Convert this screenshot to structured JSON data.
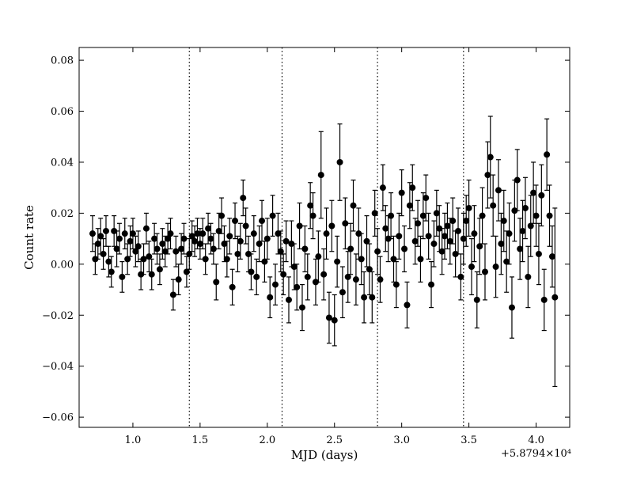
{
  "chart_data": {
    "type": "scatter",
    "title": "",
    "xlabel": "MJD (days)",
    "ylabel": "Count rate",
    "xlim": [
      0.6,
      4.25
    ],
    "ylim": [
      -0.064,
      0.085
    ],
    "x_offset_label": "+5.8794×10⁴",
    "x_ticks": [
      1.0,
      1.5,
      2.0,
      2.5,
      3.0,
      3.5,
      4.0
    ],
    "x_tick_labels": [
      "1.0",
      "1.5",
      "2.0",
      "2.5",
      "3.0",
      "3.5",
      "4.0"
    ],
    "y_ticks": [
      -0.06,
      -0.04,
      -0.02,
      0.0,
      0.02,
      0.04,
      0.06,
      0.08
    ],
    "y_tick_labels": [
      "−0.06",
      "−0.04",
      "−0.02",
      "0.00",
      "0.02",
      "0.04",
      "0.06",
      "0.08"
    ],
    "vertical_lines": [
      1.42,
      2.11,
      2.82,
      3.46
    ],
    "grid": false,
    "marker_color": "#000000",
    "series": [
      {
        "points": [
          [
            0.7,
            0.012,
            0.007
          ],
          [
            0.72,
            0.002,
            0.006
          ],
          [
            0.74,
            0.008,
            0.006
          ],
          [
            0.76,
            0.011,
            0.007
          ],
          [
            0.78,
            0.004,
            0.006
          ],
          [
            0.8,
            0.013,
            0.006
          ],
          [
            0.82,
            0.001,
            0.006
          ],
          [
            0.84,
            -0.003,
            0.006
          ],
          [
            0.86,
            0.013,
            0.006
          ],
          [
            0.88,
            0.006,
            0.007
          ],
          [
            0.9,
            0.01,
            0.006
          ],
          [
            0.92,
            -0.005,
            0.006
          ],
          [
            0.94,
            0.012,
            0.006
          ],
          [
            0.96,
            0.002,
            0.006
          ],
          [
            0.98,
            0.009,
            0.006
          ],
          [
            1.0,
            0.012,
            0.006
          ],
          [
            1.02,
            0.005,
            0.006
          ],
          [
            1.04,
            0.007,
            0.006
          ],
          [
            1.06,
            -0.004,
            0.006
          ],
          [
            1.08,
            0.002,
            0.006
          ],
          [
            1.1,
            0.014,
            0.006
          ],
          [
            1.12,
            0.003,
            0.006
          ],
          [
            1.14,
            -0.004,
            0.006
          ],
          [
            1.16,
            0.01,
            0.006
          ],
          [
            1.18,
            0.006,
            0.006
          ],
          [
            1.2,
            -0.002,
            0.006
          ],
          [
            1.22,
            0.008,
            0.006
          ],
          [
            1.24,
            0.005,
            0.006
          ],
          [
            1.26,
            0.01,
            0.006
          ],
          [
            1.28,
            0.012,
            0.006
          ],
          [
            1.3,
            -0.012,
            0.006
          ],
          [
            1.32,
            0.005,
            0.006
          ],
          [
            1.34,
            -0.006,
            0.006
          ],
          [
            1.36,
            0.006,
            0.006
          ],
          [
            1.38,
            0.01,
            0.006
          ],
          [
            1.4,
            -0.003,
            0.006
          ],
          [
            1.42,
            0.004,
            0.006
          ],
          [
            1.44,
            0.011,
            0.006
          ],
          [
            1.46,
            0.009,
            0.006
          ],
          [
            1.48,
            0.012,
            0.006
          ],
          [
            1.5,
            0.008,
            0.006
          ],
          [
            1.52,
            0.012,
            0.006
          ],
          [
            1.54,
            0.002,
            0.006
          ],
          [
            1.56,
            0.014,
            0.006
          ],
          [
            1.58,
            0.01,
            0.006
          ],
          [
            1.6,
            0.006,
            0.006
          ],
          [
            1.62,
            -0.007,
            0.007
          ],
          [
            1.64,
            0.013,
            0.007
          ],
          [
            1.66,
            0.019,
            0.007
          ],
          [
            1.68,
            0.008,
            0.007
          ],
          [
            1.7,
            0.002,
            0.007
          ],
          [
            1.72,
            0.011,
            0.007
          ],
          [
            1.74,
            -0.009,
            0.007
          ],
          [
            1.76,
            0.017,
            0.007
          ],
          [
            1.78,
            0.004,
            0.007
          ],
          [
            1.8,
            0.009,
            0.007
          ],
          [
            1.82,
            0.026,
            0.007
          ],
          [
            1.84,
            0.015,
            0.007
          ],
          [
            1.86,
            0.004,
            0.007
          ],
          [
            1.88,
            -0.003,
            0.007
          ],
          [
            1.9,
            0.012,
            0.007
          ],
          [
            1.92,
            -0.005,
            0.007
          ],
          [
            1.94,
            0.008,
            0.007
          ],
          [
            1.96,
            0.017,
            0.008
          ],
          [
            1.98,
            0.001,
            0.008
          ],
          [
            2.0,
            0.01,
            0.008
          ],
          [
            2.02,
            -0.013,
            0.008
          ],
          [
            2.04,
            0.019,
            0.008
          ],
          [
            2.06,
            -0.008,
            0.008
          ],
          [
            2.08,
            0.012,
            0.008
          ],
          [
            2.1,
            0.005,
            0.008
          ],
          [
            2.12,
            -0.004,
            0.008
          ],
          [
            2.14,
            0.009,
            0.008
          ],
          [
            2.16,
            -0.014,
            0.009
          ],
          [
            2.18,
            0.008,
            0.009
          ],
          [
            2.2,
            -0.001,
            0.009
          ],
          [
            2.22,
            -0.009,
            0.009
          ],
          [
            2.24,
            0.015,
            0.009
          ],
          [
            2.26,
            -0.017,
            0.009
          ],
          [
            2.28,
            0.006,
            0.009
          ],
          [
            2.3,
            -0.005,
            0.009
          ],
          [
            2.32,
            0.023,
            0.009
          ],
          [
            2.34,
            0.019,
            0.009
          ],
          [
            2.36,
            -0.007,
            0.009
          ],
          [
            2.38,
            0.003,
            0.01
          ],
          [
            2.4,
            0.035,
            0.017
          ],
          [
            2.42,
            -0.004,
            0.01
          ],
          [
            2.44,
            0.012,
            0.01
          ],
          [
            2.46,
            -0.021,
            0.01
          ],
          [
            2.48,
            0.015,
            0.01
          ],
          [
            2.5,
            -0.022,
            0.01
          ],
          [
            2.52,
            0.001,
            0.01
          ],
          [
            2.54,
            0.04,
            0.015
          ],
          [
            2.56,
            -0.011,
            0.01
          ],
          [
            2.58,
            0.016,
            0.01
          ],
          [
            2.6,
            -0.005,
            0.01
          ],
          [
            2.62,
            0.006,
            0.01
          ],
          [
            2.64,
            0.023,
            0.01
          ],
          [
            2.66,
            -0.006,
            0.01
          ],
          [
            2.68,
            0.012,
            0.01
          ],
          [
            2.7,
            0.002,
            0.01
          ],
          [
            2.72,
            -0.013,
            0.01
          ],
          [
            2.74,
            0.009,
            0.01
          ],
          [
            2.76,
            -0.002,
            0.01
          ],
          [
            2.78,
            -0.013,
            0.01
          ],
          [
            2.8,
            0.02,
            0.009
          ],
          [
            2.82,
            0.005,
            0.009
          ],
          [
            2.84,
            -0.006,
            0.009
          ],
          [
            2.86,
            0.03,
            0.009
          ],
          [
            2.88,
            0.014,
            0.009
          ],
          [
            2.9,
            0.01,
            0.009
          ],
          [
            2.92,
            0.019,
            0.009
          ],
          [
            2.94,
            0.002,
            0.009
          ],
          [
            2.96,
            -0.008,
            0.009
          ],
          [
            2.98,
            0.011,
            0.009
          ],
          [
            3.0,
            0.028,
            0.009
          ],
          [
            3.02,
            0.006,
            0.009
          ],
          [
            3.04,
            -0.016,
            0.009
          ],
          [
            3.06,
            0.023,
            0.009
          ],
          [
            3.08,
            0.03,
            0.009
          ],
          [
            3.1,
            0.009,
            0.009
          ],
          [
            3.12,
            0.016,
            0.009
          ],
          [
            3.14,
            0.002,
            0.009
          ],
          [
            3.16,
            0.019,
            0.009
          ],
          [
            3.18,
            0.026,
            0.009
          ],
          [
            3.2,
            0.011,
            0.009
          ],
          [
            3.22,
            -0.008,
            0.009
          ],
          [
            3.24,
            0.008,
            0.009
          ],
          [
            3.26,
            0.02,
            0.009
          ],
          [
            3.28,
            0.014,
            0.009
          ],
          [
            3.3,
            0.005,
            0.009
          ],
          [
            3.32,
            0.011,
            0.009
          ],
          [
            3.34,
            0.015,
            0.009
          ],
          [
            3.36,
            0.009,
            0.009
          ],
          [
            3.38,
            0.017,
            0.009
          ],
          [
            3.4,
            0.004,
            0.009
          ],
          [
            3.42,
            0.013,
            0.009
          ],
          [
            3.44,
            -0.005,
            0.009
          ],
          [
            3.46,
            0.01,
            0.01
          ],
          [
            3.48,
            0.017,
            0.01
          ],
          [
            3.5,
            0.022,
            0.011
          ],
          [
            3.52,
            -0.001,
            0.011
          ],
          [
            3.54,
            0.012,
            0.011
          ],
          [
            3.56,
            -0.014,
            0.011
          ],
          [
            3.58,
            0.007,
            0.011
          ],
          [
            3.6,
            0.019,
            0.011
          ],
          [
            3.62,
            -0.003,
            0.011
          ],
          [
            3.64,
            0.035,
            0.013
          ],
          [
            3.66,
            0.042,
            0.016
          ],
          [
            3.68,
            0.023,
            0.012
          ],
          [
            3.7,
            -0.001,
            0.012
          ],
          [
            3.72,
            0.029,
            0.012
          ],
          [
            3.74,
            0.008,
            0.012
          ],
          [
            3.76,
            0.017,
            0.012
          ],
          [
            3.78,
            0.001,
            0.012
          ],
          [
            3.8,
            0.012,
            0.012
          ],
          [
            3.82,
            -0.017,
            0.012
          ],
          [
            3.84,
            0.021,
            0.012
          ],
          [
            3.86,
            0.033,
            0.012
          ],
          [
            3.88,
            0.006,
            0.012
          ],
          [
            3.9,
            0.013,
            0.012
          ],
          [
            3.92,
            0.022,
            0.012
          ],
          [
            3.94,
            -0.005,
            0.012
          ],
          [
            3.96,
            0.015,
            0.012
          ],
          [
            3.98,
            0.028,
            0.012
          ],
          [
            4.0,
            0.019,
            0.012
          ],
          [
            4.02,
            0.004,
            0.012
          ],
          [
            4.04,
            0.027,
            0.012
          ],
          [
            4.06,
            -0.014,
            0.012
          ],
          [
            4.08,
            0.043,
            0.014
          ],
          [
            4.1,
            0.019,
            0.012
          ],
          [
            4.12,
            0.003,
            0.012
          ],
          [
            4.14,
            -0.013,
            0.035
          ]
        ]
      }
    ]
  }
}
